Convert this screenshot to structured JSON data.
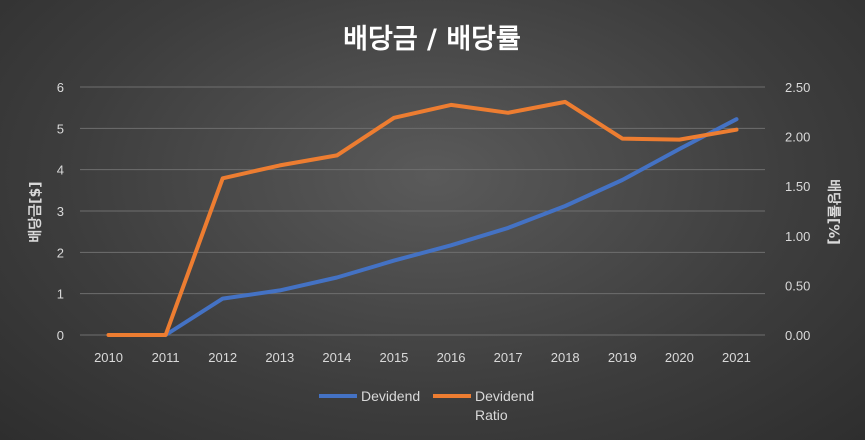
{
  "chart_data": {
    "type": "line",
    "title": "배당금 / 배당률",
    "categories": [
      "2010",
      "2011",
      "2012",
      "2013",
      "2014",
      "2015",
      "2016",
      "2017",
      "2018",
      "2019",
      "2020",
      "2021"
    ],
    "y_left": {
      "label": "배당금[$]",
      "ticks": [
        "0",
        "1",
        "2",
        "3",
        "4",
        "5",
        "6"
      ],
      "range": [
        0,
        6
      ]
    },
    "y_right": {
      "label": "배당률[%]",
      "ticks": [
        "0.00",
        "0.50",
        "1.00",
        "1.50",
        "2.00",
        "2.50"
      ],
      "range": [
        0,
        2.5
      ]
    },
    "grid": true,
    "legend_position": "bottom",
    "series": [
      {
        "name": "Devidend",
        "axis": "left",
        "color": "#4472c4",
        "values": [
          null,
          0,
          0.88,
          1.08,
          1.39,
          1.8,
          2.17,
          2.59,
          3.12,
          3.75,
          4.5,
          5.22
        ]
      },
      {
        "name": "Devidend Ratio",
        "legend_lines": [
          "Devidend",
          "Ratio"
        ],
        "axis": "right",
        "color": "#ed7d31",
        "values": [
          0,
          0,
          1.58,
          1.71,
          1.81,
          2.19,
          2.32,
          2.24,
          2.35,
          1.98,
          1.97,
          2.07
        ]
      }
    ]
  }
}
